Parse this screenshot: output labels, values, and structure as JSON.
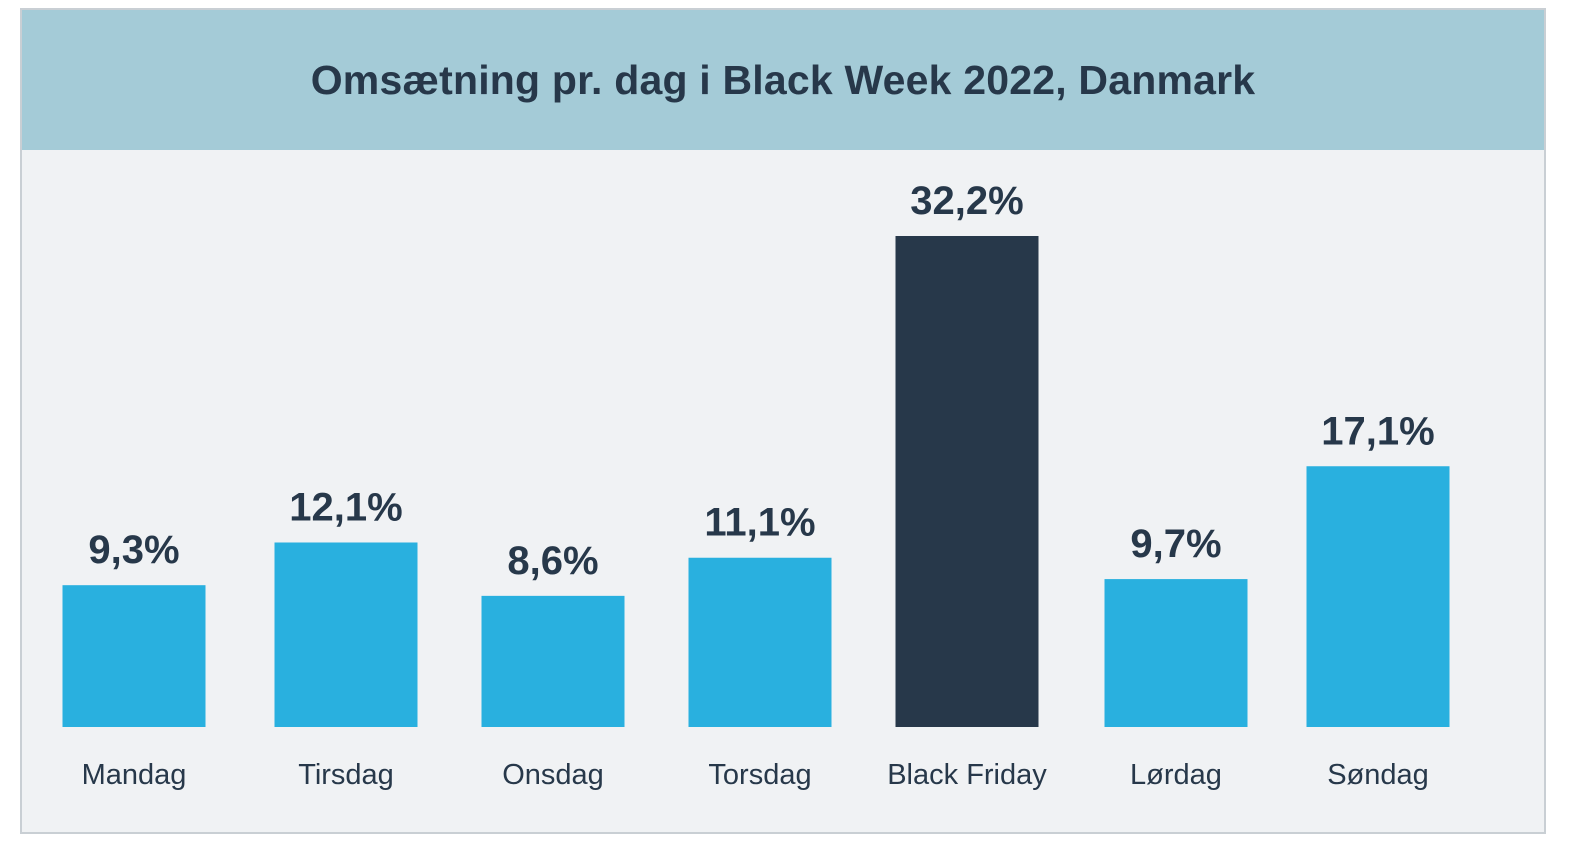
{
  "chart_data": {
    "type": "bar",
    "title": "Omsætning pr. dag i Black Week 2022, Danmark",
    "categories": [
      "Mandag",
      "Tirsdag",
      "Onsdag",
      "Torsdag",
      "Black Friday",
      "Lørdag",
      "Søndag"
    ],
    "values": [
      9.3,
      12.1,
      8.6,
      11.1,
      32.2,
      9.7,
      17.1
    ],
    "value_labels": [
      "9,3%",
      "12,1%",
      "8,6%",
      "11,1%",
      "32,2%",
      "9,7%",
      "17,1%"
    ],
    "xlabel": "",
    "ylabel": "",
    "ylim": [
      0,
      32.2
    ],
    "grid": false,
    "legend": "none",
    "highlight_index": 4
  },
  "colors": {
    "bar": "#29b0df",
    "highlight_bar": "#27384a",
    "header_bg": "#a4cbd7",
    "panel_bg": "#f0f2f4",
    "text": "#27384a"
  }
}
